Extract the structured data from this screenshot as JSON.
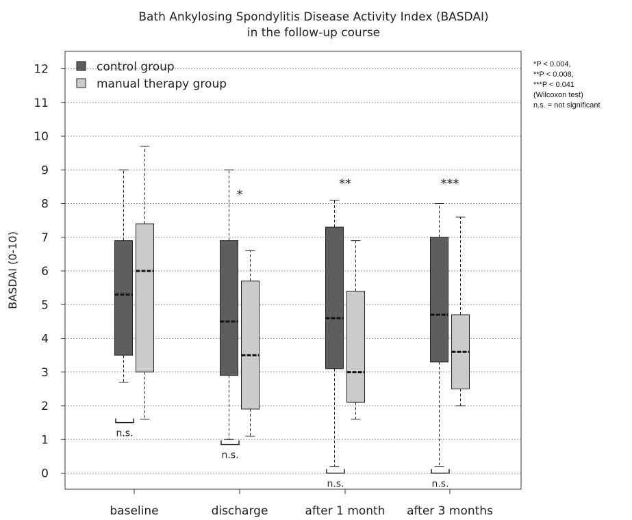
{
  "chart_data": {
    "type": "box",
    "title_lines": [
      "Bath Ankylosing Spondylitis Disease Activity Index (BASDAI)",
      "in the follow-up course"
    ],
    "ylabel": "BASDAI (0-10)",
    "ylim": [
      -0.5,
      12.4
    ],
    "yticks": [
      0,
      1,
      2,
      3,
      4,
      5,
      6,
      7,
      8,
      9,
      10,
      11,
      12
    ],
    "grid": true,
    "categories": [
      "baseline",
      "discharge",
      "after 1 month",
      "after 3 months"
    ],
    "legend_position": "top-left",
    "series": [
      {
        "name": "control group",
        "color": "#5e5e5e",
        "boxes": [
          {
            "min": 2.7,
            "q1": 3.5,
            "median": 5.3,
            "q3": 6.9,
            "max": 9.0
          },
          {
            "min": 1.0,
            "q1": 2.9,
            "median": 4.5,
            "q3": 6.9,
            "max": 9.0
          },
          {
            "min": 0.2,
            "q1": 3.1,
            "median": 4.6,
            "q3": 7.3,
            "max": 8.1
          },
          {
            "min": 0.2,
            "q1": 3.3,
            "median": 4.7,
            "q3": 7.0,
            "max": 8.0
          }
        ]
      },
      {
        "name": "manual therapy group",
        "color": "#cbcbcb",
        "boxes": [
          {
            "min": 1.6,
            "q1": 3.0,
            "median": 6.0,
            "q3": 7.4,
            "max": 9.7
          },
          {
            "min": 1.1,
            "q1": 1.9,
            "median": 3.5,
            "q3": 5.7,
            "max": 6.6
          },
          {
            "min": 1.6,
            "q1": 2.1,
            "median": 3.0,
            "q3": 5.4,
            "max": 6.9
          },
          {
            "min": 2.0,
            "q1": 2.5,
            "median": 3.6,
            "q3": 4.7,
            "max": 7.6
          }
        ]
      }
    ],
    "significance": [
      "n.s.",
      "*",
      "**",
      "***"
    ],
    "notes": [
      "*P < 0.004,",
      "**P < 0.008,",
      "***P < 0.041",
      "(Wilcoxon  test)",
      "n.s. = not significant"
    ]
  }
}
